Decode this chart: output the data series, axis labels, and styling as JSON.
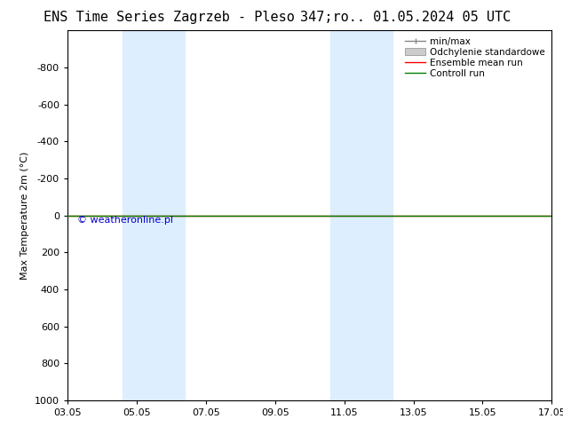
{
  "title_left": "ENS Time Series Zagrzeb - Pleso",
  "title_right": "347;ro.. 01.05.2024 05 UTC",
  "ylabel": "Max Temperature 2m (°C)",
  "ylim": [
    -1000,
    1000
  ],
  "yticks": [
    -800,
    -600,
    -400,
    -200,
    0,
    200,
    400,
    600,
    800,
    1000
  ],
  "xtick_labels": [
    "03.05",
    "05.05",
    "07.05",
    "09.05",
    "11.05",
    "13.05",
    "15.05",
    "17.05"
  ],
  "xtick_positions": [
    0,
    2,
    4,
    6,
    8,
    10,
    12,
    14
  ],
  "shaded_regions": [
    {
      "start": 1.6,
      "end": 3.4
    },
    {
      "start": 7.6,
      "end": 9.4
    }
  ],
  "control_run_y": 0,
  "ensemble_mean_y": 0,
  "control_run_color": "#008000",
  "ensemble_mean_color": "#ff0000",
  "minmax_color": "#888888",
  "std_dev_color": "#cccccc",
  "shade_color": "#ddeeff",
  "watermark_text": "© weatheronline.pl",
  "watermark_color": "#0000cc",
  "background_color": "#ffffff",
  "legend_items": [
    "min/max",
    "Odchylenie standardowe",
    "Ensemble mean run",
    "Controll run"
  ],
  "legend_colors": [
    "#888888",
    "#cccccc",
    "#ff0000",
    "#008000"
  ],
  "title_fontsize": 11,
  "axis_fontsize": 8,
  "legend_fontsize": 7.5
}
